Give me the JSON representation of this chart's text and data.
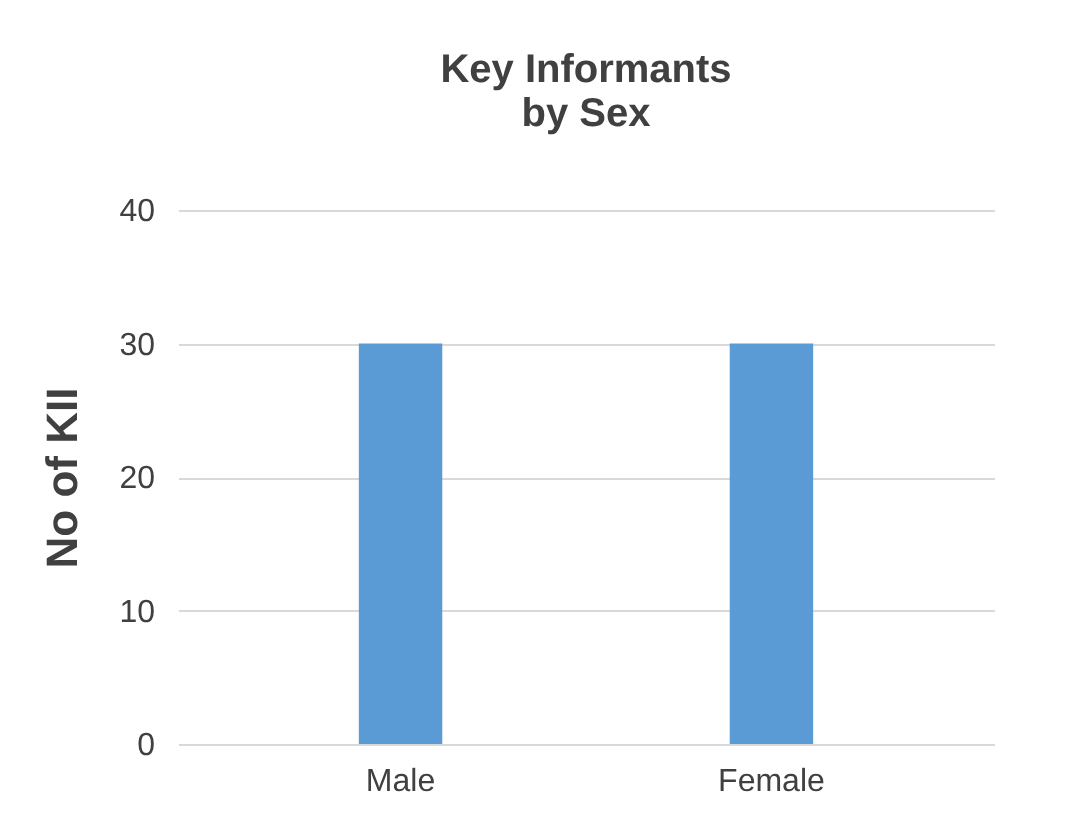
{
  "chart_data": {
    "type": "bar",
    "title": "Key Informants\nby Sex",
    "ylabel": "No of KII",
    "categories": [
      "Male",
      "Female"
    ],
    "values": [
      30,
      30
    ],
    "color": "#5b9bd5",
    "ylim": [
      0,
      40
    ],
    "yticks": [
      0,
      10,
      20,
      30,
      40
    ],
    "grid": "y"
  }
}
